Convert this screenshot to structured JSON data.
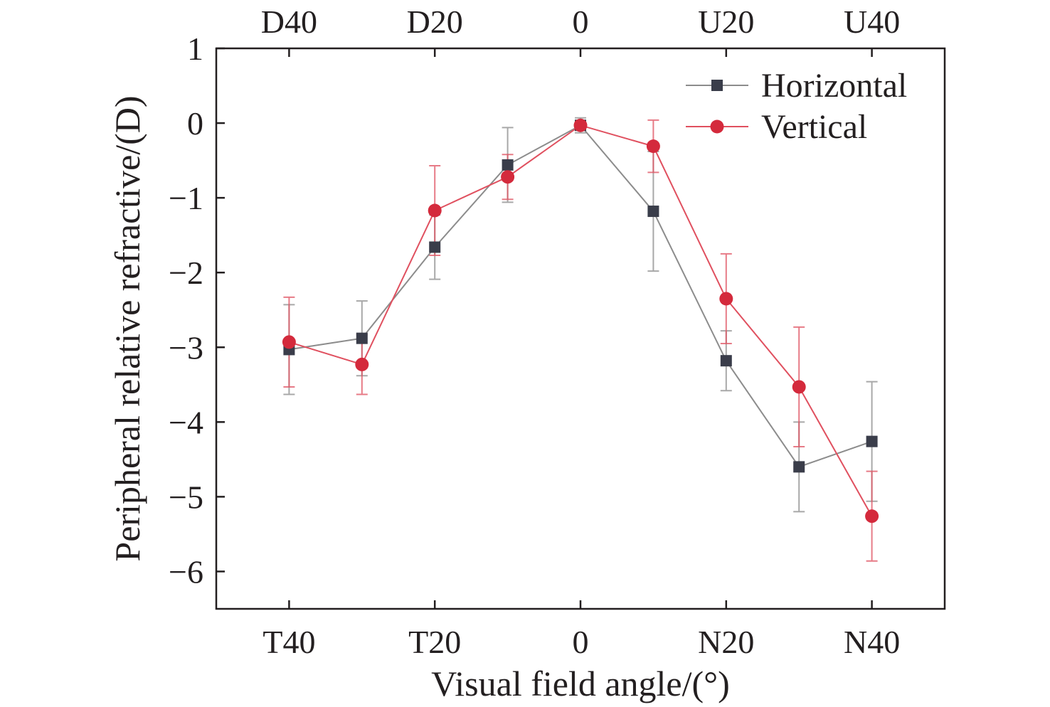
{
  "chart_data": {
    "type": "line",
    "xlabel": "Visual field angle/(°)",
    "ylabel": "Peripheral relative refractive/(D)",
    "x": [
      -40,
      -30,
      -20,
      -10,
      0,
      10,
      20,
      30,
      40
    ],
    "xlim": [
      -50,
      50
    ],
    "ylim": [
      -6.5,
      1
    ],
    "x_ticks": [
      {
        "value": -40,
        "label": "T40"
      },
      {
        "value": -20,
        "label": "T20"
      },
      {
        "value": 0,
        "label": "0"
      },
      {
        "value": 20,
        "label": "N20"
      },
      {
        "value": 40,
        "label": "N40"
      }
    ],
    "x_top_ticks": [
      {
        "value": -40,
        "label": "D40"
      },
      {
        "value": -20,
        "label": "D20"
      },
      {
        "value": 0,
        "label": "0"
      },
      {
        "value": 20,
        "label": "U20"
      },
      {
        "value": 40,
        "label": "U40"
      }
    ],
    "y_ticks": [
      {
        "value": 1,
        "label": "1"
      },
      {
        "value": 0,
        "label": "0"
      },
      {
        "value": -1,
        "label": "−1"
      },
      {
        "value": -2,
        "label": "−2"
      },
      {
        "value": -3,
        "label": "−3"
      },
      {
        "value": -4,
        "label": "−4"
      },
      {
        "value": -5,
        "label": "−5"
      },
      {
        "value": -6,
        "label": "−6"
      }
    ],
    "series": [
      {
        "name": "Horizontal",
        "color": "#3a3d4a",
        "line_color": "#8c8c8c",
        "marker": "square",
        "values": [
          -3.03,
          -2.88,
          -1.66,
          -0.56,
          -0.03,
          -1.18,
          -3.18,
          -4.6,
          -4.26
        ],
        "error": [
          0.6,
          0.5,
          0.43,
          0.5,
          0.1,
          0.8,
          0.4,
          0.6,
          0.8
        ]
      },
      {
        "name": "Vertical",
        "color": "#d42a3c",
        "line_color": "#e0505f",
        "marker": "circle",
        "values": [
          -2.93,
          -3.23,
          -1.17,
          -0.72,
          -0.03,
          -0.31,
          -2.35,
          -3.53,
          -5.26
        ],
        "error": [
          0.6,
          0.4,
          0.6,
          0.3,
          0.05,
          0.35,
          0.6,
          0.8,
          0.6
        ]
      }
    ],
    "legend_position": "top-right",
    "grid": false
  }
}
